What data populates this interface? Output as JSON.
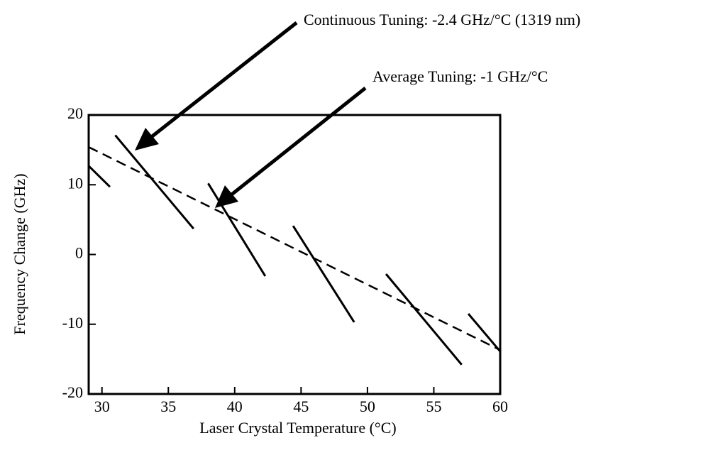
{
  "chart_data": {
    "type": "line",
    "annotations": [
      "Continuous Tuning:  -2.4 GHz/°C (1319 nm)",
      "Average Tuning:  -1 GHz/°C"
    ],
    "xlabel": "Laser Crystal Temperature (°C)",
    "ylabel": "Frequency Change (GHz)",
    "xlim": [
      29,
      60
    ],
    "ylim": [
      -20,
      20
    ],
    "xticks": [
      30,
      35,
      40,
      45,
      50,
      55,
      60
    ],
    "yticks": [
      -20,
      -10,
      0,
      10,
      20
    ],
    "grid": false,
    "series": [
      {
        "color": "#000000",
        "style": "solid",
        "x": [
          29.0,
          30.6,
          null,
          31.0,
          36.9,
          null,
          38.0,
          42.3,
          null,
          44.4,
          49.0,
          null,
          51.4,
          57.1,
          null,
          57.6,
          60.0
        ],
        "values": [
          12.7,
          9.7,
          null,
          17.1,
          3.7,
          null,
          10.2,
          -3.1,
          null,
          4.1,
          -9.7,
          null,
          -2.8,
          -15.8,
          null,
          -8.5,
          -13.9
        ]
      },
      {
        "color": "#000000",
        "style": "dashed",
        "x": [
          29.0,
          60.0
        ],
        "values": [
          15.4,
          -13.7
        ]
      }
    ]
  }
}
